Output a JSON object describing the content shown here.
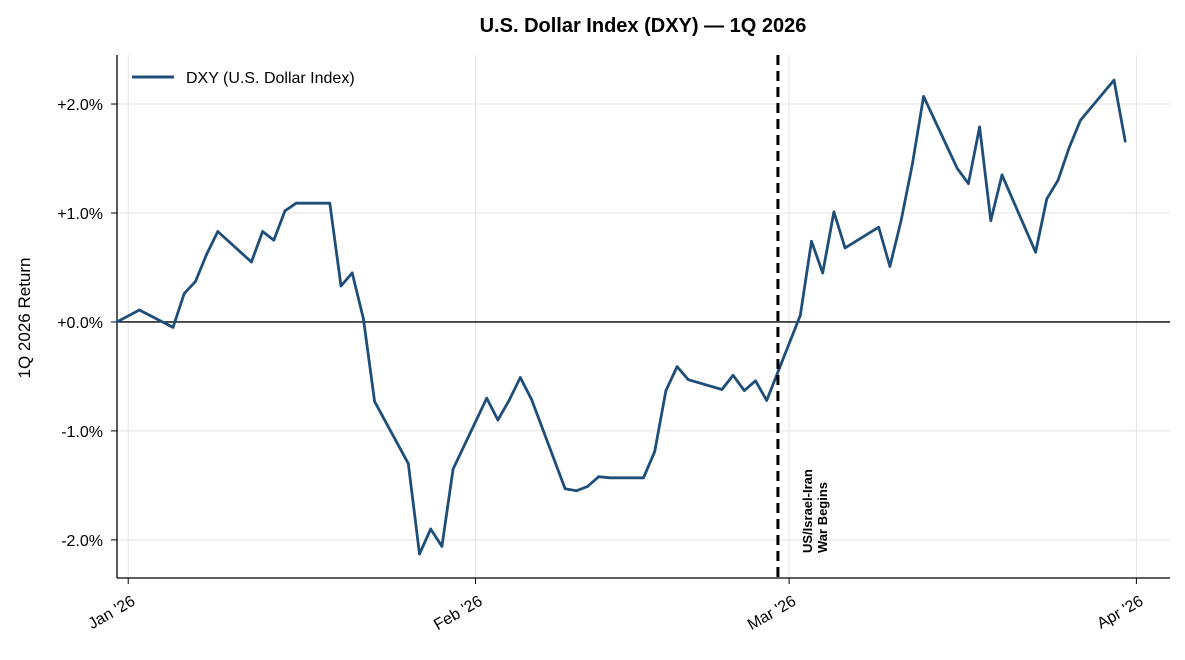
{
  "chart_data": {
    "type": "line",
    "title": "U.S. Dollar Index (DXY) — 1Q 2026",
    "xlabel": "",
    "ylabel": "1Q 2026 Return",
    "y_unit": "%",
    "xlim": [
      "2025-12-31",
      "2026-04-04"
    ],
    "ylim": [
      -2.35,
      2.45
    ],
    "x_ticks": [
      {
        "date": "2026-01-01",
        "label": "Jan '26"
      },
      {
        "date": "2026-02-01",
        "label": "Feb '26"
      },
      {
        "date": "2026-03-01",
        "label": "Mar '26"
      },
      {
        "date": "2026-04-01",
        "label": "Apr '26"
      }
    ],
    "y_ticks": [
      {
        "value": 2,
        "label": "+2.0%"
      },
      {
        "value": 1,
        "label": "+1.0%"
      },
      {
        "value": 0,
        "label": "+0.0%"
      },
      {
        "value": -1,
        "label": "-1.0%"
      },
      {
        "value": -2,
        "label": "-2.0%"
      }
    ],
    "grid": true,
    "legend_position": "top-left",
    "zero_line": 0,
    "series": [
      {
        "name": "DXY (U.S. Dollar Index)",
        "color": "#1f4e79",
        "points": [
          [
            "2025-12-31",
            0.0
          ],
          [
            "2026-01-02",
            0.11
          ],
          [
            "2026-01-05",
            -0.05
          ],
          [
            "2026-01-06",
            0.26
          ],
          [
            "2026-01-07",
            0.37
          ],
          [
            "2026-01-08",
            0.62
          ],
          [
            "2026-01-09",
            0.83
          ],
          [
            "2026-01-12",
            0.55
          ],
          [
            "2026-01-13",
            0.83
          ],
          [
            "2026-01-14",
            0.75
          ],
          [
            "2026-01-15",
            1.02
          ],
          [
            "2026-01-16",
            1.09
          ],
          [
            "2026-01-19",
            1.09
          ],
          [
            "2026-01-20",
            0.33
          ],
          [
            "2026-01-21",
            0.45
          ],
          [
            "2026-01-22",
            0.03
          ],
          [
            "2026-01-23",
            -0.73
          ],
          [
            "2026-01-26",
            -1.3
          ],
          [
            "2026-01-27",
            -2.13
          ],
          [
            "2026-01-28",
            -1.9
          ],
          [
            "2026-01-29",
            -2.06
          ],
          [
            "2026-01-30",
            -1.35
          ],
          [
            "2026-02-02",
            -0.7
          ],
          [
            "2026-02-03",
            -0.9
          ],
          [
            "2026-02-04",
            -0.72
          ],
          [
            "2026-02-05",
            -0.51
          ],
          [
            "2026-02-06",
            -0.71
          ],
          [
            "2026-02-09",
            -1.53
          ],
          [
            "2026-02-10",
            -1.55
          ],
          [
            "2026-02-11",
            -1.51
          ],
          [
            "2026-02-12",
            -1.42
          ],
          [
            "2026-02-13",
            -1.43
          ],
          [
            "2026-02-16",
            -1.43
          ],
          [
            "2026-02-17",
            -1.19
          ],
          [
            "2026-02-18",
            -0.63
          ],
          [
            "2026-02-19",
            -0.41
          ],
          [
            "2026-02-20",
            -0.53
          ],
          [
            "2026-02-23",
            -0.62
          ],
          [
            "2026-02-24",
            -0.49
          ],
          [
            "2026-02-25",
            -0.63
          ],
          [
            "2026-02-26",
            -0.54
          ],
          [
            "2026-02-27",
            -0.72
          ],
          [
            "2026-03-02",
            0.06
          ],
          [
            "2026-03-03",
            0.74
          ],
          [
            "2026-03-04",
            0.45
          ],
          [
            "2026-03-05",
            1.01
          ],
          [
            "2026-03-06",
            0.68
          ],
          [
            "2026-03-09",
            0.87
          ],
          [
            "2026-03-10",
            0.51
          ],
          [
            "2026-03-11",
            0.93
          ],
          [
            "2026-03-12",
            1.45
          ],
          [
            "2026-03-13",
            2.07
          ],
          [
            "2026-03-16",
            1.41
          ],
          [
            "2026-03-17",
            1.27
          ],
          [
            "2026-03-18",
            1.79
          ],
          [
            "2026-03-19",
            0.93
          ],
          [
            "2026-03-20",
            1.35
          ],
          [
            "2026-03-23",
            0.64
          ],
          [
            "2026-03-24",
            1.13
          ],
          [
            "2026-03-25",
            1.3
          ],
          [
            "2026-03-26",
            1.6
          ],
          [
            "2026-03-27",
            1.85
          ],
          [
            "2026-03-30",
            2.22
          ],
          [
            "2026-03-31",
            1.66
          ]
        ]
      }
    ],
    "annotations": [
      {
        "type": "vline",
        "date": "2026-02-28",
        "style": "dashed",
        "color": "#000000",
        "label_lines": [
          "US/Israel-Iran",
          "War Begins"
        ]
      }
    ]
  }
}
